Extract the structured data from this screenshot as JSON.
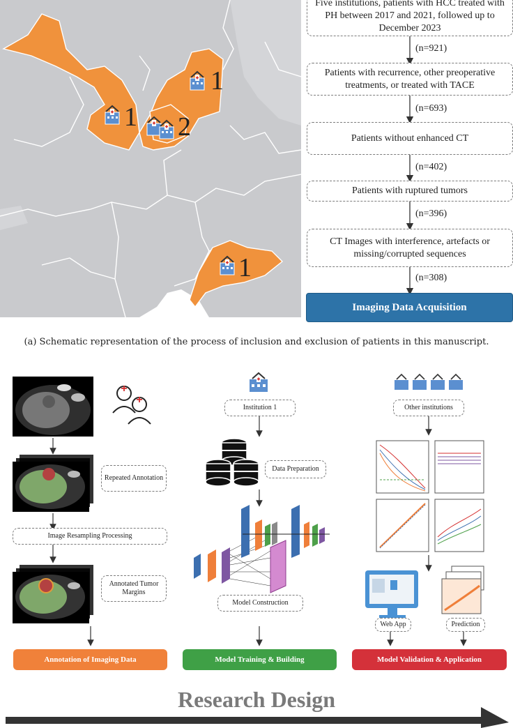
{
  "flowchart": {
    "steps": [
      "Five institutions, patients with HCC treated with PH between 2017 and 2021, followed up to December 2023",
      "Patients with recurrence, other preoperative treatments, or treated with TACE",
      "Patients without enhanced CT",
      "Patients with ruptured tumors",
      "CT Images with interference, artefacts or missing/corrupted sequences"
    ],
    "counts": [
      "(n=921)",
      "(n=693)",
      "(n=402)",
      "(n=396)",
      "(n=308)"
    ],
    "final": "Imaging Data Acquisition"
  },
  "map": {
    "institution_counts": [
      "1",
      "1",
      "2",
      "1"
    ],
    "region_color": "#f0923c",
    "base_color": "#c8c9cc"
  },
  "caption_a": "(a) Schematic representation of the process of inclusion and exclusion of patients in this manuscript.",
  "pipeline": {
    "annotation": {
      "repeated": "Repeated Annotation",
      "resampling": "Image Resampling Processing",
      "margins": "Annotated Tumor Margins",
      "stage": "Annotation of Imaging Data",
      "color": "#f0813a"
    },
    "model": {
      "institution": "Institution 1",
      "prep": "Data Preparation",
      "construction": "Model Construction",
      "stage": "Model Training & Building",
      "color": "#3fa046"
    },
    "validation": {
      "other": "Other institutions",
      "webapp": "Web App",
      "prediction": "Prediction",
      "stage": "Model Validation & Application",
      "color": "#d4313a"
    }
  },
  "footer": {
    "title": "Research Design"
  }
}
